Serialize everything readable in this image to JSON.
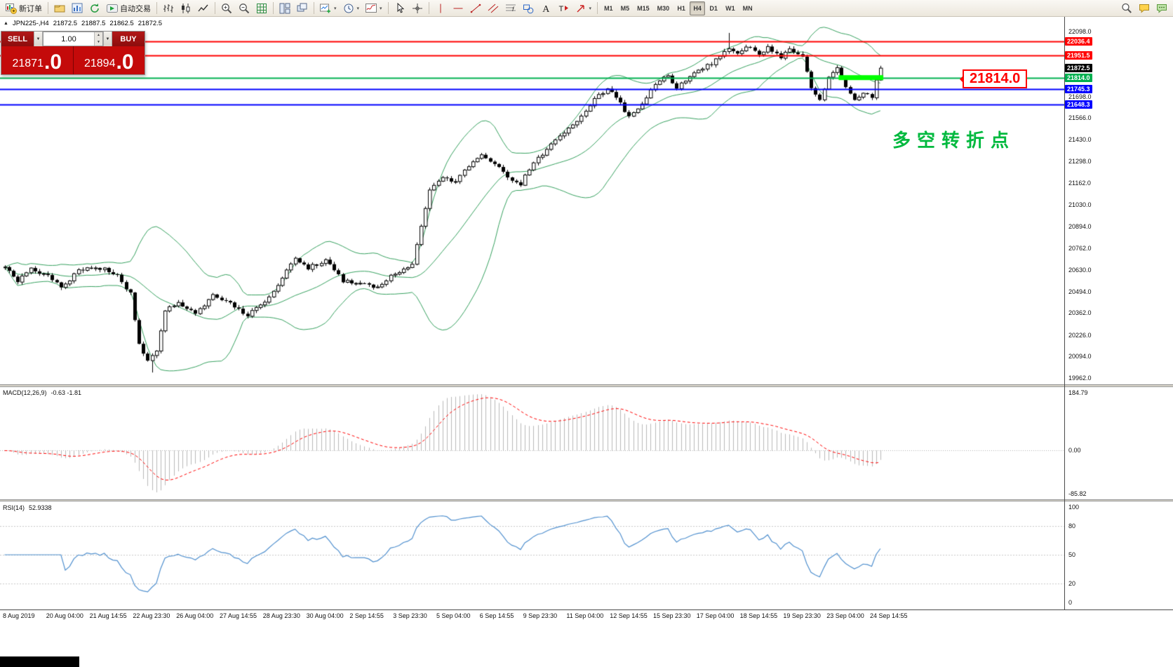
{
  "toolbar": {
    "groups": [
      {
        "items": [
          {
            "name": "new-order",
            "icon": "new-order",
            "label": "新订单"
          }
        ]
      },
      {
        "items": [
          {
            "name": "charts-profile",
            "icon": "profiles"
          },
          {
            "name": "market-watch",
            "icon": "market-watch"
          },
          {
            "name": "data-refresh",
            "icon": "refresh"
          },
          {
            "name": "autotrading",
            "icon": "autotrading",
            "label": "自动交易"
          }
        ]
      },
      {
        "items": [
          {
            "name": "bar-chart-mode",
            "icon": "bars"
          },
          {
            "name": "candlestick-mode",
            "icon": "candles"
          },
          {
            "name": "line-chart-mode",
            "icon": "linechart"
          }
        ]
      },
      {
        "items": [
          {
            "name": "zoom-in",
            "icon": "zoom-in"
          },
          {
            "name": "zoom-out",
            "icon": "zoom-out"
          },
          {
            "name": "chart-grid",
            "icon": "grid"
          }
        ]
      },
      {
        "items": [
          {
            "name": "tile-windows",
            "icon": "tile"
          },
          {
            "name": "arrange-windows",
            "icon": "cascade"
          }
        ]
      },
      {
        "items": [
          {
            "name": "new-chart",
            "icon": "new-chart",
            "caret": true
          },
          {
            "name": "chart-periods",
            "icon": "clock",
            "caret": true
          },
          {
            "name": "indicators-list",
            "icon": "indicator",
            "caret": true
          }
        ]
      },
      {
        "items": [
          {
            "name": "cursor-tool",
            "icon": "cursor"
          },
          {
            "name": "crosshair-tool",
            "icon": "crosshair"
          }
        ]
      },
      {
        "items": [
          {
            "name": "vertical-line-tool",
            "icon": "vline"
          },
          {
            "name": "horizontal-line-tool",
            "icon": "hline"
          },
          {
            "name": "trendline-tool",
            "icon": "tline"
          },
          {
            "name": "equidistant-channel-tool",
            "icon": "channel"
          },
          {
            "name": "fibonacci-tool",
            "icon": "fibo"
          },
          {
            "name": "shapes-tool",
            "icon": "shapes"
          },
          {
            "name": "text-tool",
            "icon": "text"
          },
          {
            "name": "text-label-tool",
            "icon": "label"
          },
          {
            "name": "arrows-tool",
            "icon": "arrow",
            "caret": true
          }
        ]
      }
    ],
    "timeframes": [
      "M1",
      "M5",
      "M15",
      "M30",
      "H1",
      "H4",
      "D1",
      "W1",
      "MN"
    ],
    "active_timeframe": "H4",
    "right_icons": [
      {
        "name": "search",
        "icon": "search"
      },
      {
        "name": "chat",
        "icon": "chat"
      },
      {
        "name": "mql5-community",
        "icon": "chat2"
      }
    ]
  },
  "chart_header": {
    "symbol_period": "JPN225-,H4",
    "open": "21872.5",
    "high": "21887.5",
    "low": "21862.5",
    "close": "21872.5"
  },
  "trade_panel": {
    "sell_label": "SELL",
    "buy_label": "BUY",
    "volume": "1.00",
    "sell_price": {
      "main": "21871",
      "big": ".0"
    },
    "buy_price": {
      "main": "21894",
      "big": ".0"
    }
  },
  "annotations": {
    "price_callout": "21814.0",
    "turning_point_label": "多空转折点"
  },
  "chart_data": {
    "type": "candlestick",
    "symbol": "JPN225-",
    "timeframe": "H4",
    "last_price": 21872.5,
    "price_axis": {
      "max": 22098.0,
      "min": 19962.0,
      "ticks": [
        "22098.0",
        "21698.0",
        "21566.0",
        "21430.0",
        "21298.0",
        "21162.0",
        "21030.0",
        "20894.0",
        "20762.0",
        "20630.0",
        "20494.0",
        "20362.0",
        "20226.0",
        "20094.0",
        "19962.0"
      ]
    },
    "horizontal_lines": [
      {
        "price": 22036.4,
        "color": "#ff0000",
        "width": 2,
        "label": "22036.4"
      },
      {
        "price": 21951.5,
        "color": "#ff0000",
        "width": 2,
        "label": "21951.5"
      },
      {
        "price": 21814.0,
        "color": "#00b050",
        "width": 2,
        "label": "21814.0"
      },
      {
        "price": 21745.3,
        "color": "#0000ff",
        "width": 2,
        "label": "21745.3"
      },
      {
        "price": 21648.3,
        "color": "#0000ff",
        "width": 2,
        "label": "21648.3"
      }
    ],
    "current_price_label": {
      "price": 21872.5,
      "text": "21872.5",
      "bg": "#000000"
    },
    "highlight_zone": {
      "price": 21814.0,
      "x_start_frac": 0.788,
      "x_end_frac": 0.83,
      "color": "#00ff00"
    },
    "candle_count": 203,
    "close_path_anchors": [
      [
        0,
        20640
      ],
      [
        3,
        20560
      ],
      [
        6,
        20630
      ],
      [
        10,
        20600
      ],
      [
        13,
        20520
      ],
      [
        17,
        20620
      ],
      [
        21,
        20650
      ],
      [
        26,
        20600
      ],
      [
        29,
        20480
      ],
      [
        31,
        20180
      ],
      [
        33,
        20060
      ],
      [
        35,
        20130
      ],
      [
        37,
        20380
      ],
      [
        40,
        20430
      ],
      [
        44,
        20360
      ],
      [
        48,
        20470
      ],
      [
        52,
        20420
      ],
      [
        56,
        20350
      ],
      [
        60,
        20430
      ],
      [
        64,
        20580
      ],
      [
        67,
        20700
      ],
      [
        70,
        20640
      ],
      [
        74,
        20690
      ],
      [
        78,
        20560
      ],
      [
        82,
        20545
      ],
      [
        86,
        20520
      ],
      [
        90,
        20610
      ],
      [
        94,
        20660
      ],
      [
        96,
        20900
      ],
      [
        98,
        21120
      ],
      [
        101,
        21200
      ],
      [
        104,
        21170
      ],
      [
        107,
        21270
      ],
      [
        110,
        21330
      ],
      [
        113,
        21290
      ],
      [
        116,
        21200
      ],
      [
        119,
        21160
      ],
      [
        122,
        21290
      ],
      [
        126,
        21400
      ],
      [
        130,
        21500
      ],
      [
        133,
        21580
      ],
      [
        136,
        21680
      ],
      [
        139,
        21750
      ],
      [
        142,
        21650
      ],
      [
        144,
        21570
      ],
      [
        147,
        21650
      ],
      [
        150,
        21780
      ],
      [
        153,
        21820
      ],
      [
        155,
        21750
      ],
      [
        158,
        21830
      ],
      [
        161,
        21870
      ],
      [
        164,
        21920
      ],
      [
        167,
        22000
      ],
      [
        169,
        21960
      ],
      [
        171,
        22010
      ],
      [
        174,
        21950
      ],
      [
        176,
        22000
      ],
      [
        179,
        21940
      ],
      [
        181,
        21990
      ],
      [
        184,
        21940
      ],
      [
        186,
        21750
      ],
      [
        188,
        21680
      ],
      [
        190,
        21820
      ],
      [
        192,
        21870
      ],
      [
        194,
        21750
      ],
      [
        196,
        21680
      ],
      [
        198,
        21720
      ],
      [
        200,
        21690
      ],
      [
        201,
        21790
      ],
      [
        202,
        21872.5
      ]
    ],
    "wick_spikes": [
      [
        34,
        -60
      ],
      [
        167,
        85
      ]
    ],
    "indicators": {
      "bollinger": {
        "period": 20,
        "deviation": 2,
        "color": "#35a05e"
      },
      "macd": {
        "label": "MACD(12,26,9)",
        "values_text": "-0.63 -1.81",
        "axis_labels": [
          "184.79",
          "0.00",
          "-85.82"
        ],
        "histogram_color": "#b9b9b9",
        "signal_color": "#ff0000"
      },
      "rsi": {
        "label": "RSI(14)",
        "value": "52.9338",
        "levels": [
          80,
          50,
          20
        ],
        "axis_labels": [
          "100",
          "80",
          "50",
          "20",
          "0"
        ],
        "color": "#4f8fce"
      }
    },
    "time_axis": [
      "8 Aug 2019",
      "20 Aug 04:00",
      "21 Aug 14:55",
      "22 Aug 23:30",
      "26 Aug 04:00",
      "27 Aug 14:55",
      "28 Aug 23:30",
      "30 Aug 04:00",
      "2 Sep 14:55",
      "3 Sep 23:30",
      "5 Sep 04:00",
      "6 Sep 14:55",
      "9 Sep 23:30",
      "11 Sep 04:00",
      "12 Sep 14:55",
      "15 Sep 23:30",
      "17 Sep 04:00",
      "18 Sep 14:55",
      "19 Sep 23:30",
      "23 Sep 04:00",
      "24 Sep 14:55"
    ],
    "colors": {
      "candle_up": "#ffffff",
      "candle_down": "#000000",
      "candle_border": "#000000"
    }
  }
}
